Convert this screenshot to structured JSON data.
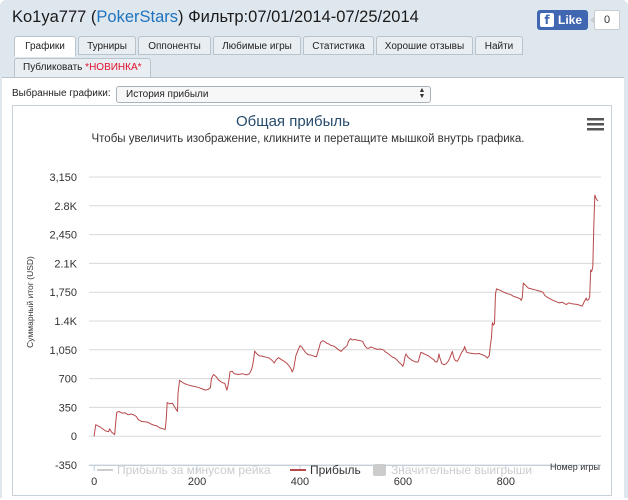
{
  "header": {
    "player": "Ko1ya777",
    "site_open": " (",
    "site": "PokerStars",
    "site_close": ")",
    "filter": " Фильтр:07/01/2014-07/25/2014"
  },
  "facebook": {
    "like_label": "Like",
    "count": "0"
  },
  "tabs": [
    {
      "label": "Графики",
      "active": true
    },
    {
      "label": "Турниры"
    },
    {
      "label": "Оппоненты"
    },
    {
      "label": "Любимые игры"
    },
    {
      "label": "Статистика"
    },
    {
      "label": "Хорошие отзывы"
    },
    {
      "label": "Найти"
    }
  ],
  "publish_tab": {
    "label": "Публиковать ",
    "badge": "*НОВИНКА*"
  },
  "graph_selector": {
    "label": "Выбранные графики:",
    "value": "История прибыли"
  },
  "chart_data": {
    "type": "line",
    "title": "Общая прибыль",
    "subtitle": "Чтобы увеличить изображение, кликните и перетащите мышкой внутрь графика.",
    "ylabel": "Суммарный итог (USD)",
    "xlabel": "Номер игры",
    "ylim": [
      -350,
      3150
    ],
    "xlim": [
      -10,
      985
    ],
    "y_ticks": [
      -350,
      0,
      350,
      700,
      1050,
      1400,
      1750,
      2100,
      2450,
      2800,
      3150
    ],
    "y_tick_labels": [
      "-350",
      "0",
      "350",
      "700",
      "1,050",
      "1.4K",
      "1,750",
      "2.1K",
      "2,450",
      "2.8K",
      "3,150"
    ],
    "x_ticks": [
      0,
      200,
      400,
      600,
      800
    ],
    "x_tick_labels": [
      "0",
      "200",
      "400",
      "600",
      "800"
    ],
    "grid": "horizontal",
    "legend_position": "bottom",
    "series": [
      {
        "name": "Прибыль за минусом рейка",
        "color": "#cccccc",
        "visible": false,
        "values": []
      },
      {
        "name": "Прибыль",
        "color": "#b8494b",
        "visible": true,
        "points": [
          [
            0,
            0
          ],
          [
            3,
            140
          ],
          [
            12,
            110
          ],
          [
            22,
            65
          ],
          [
            28,
            55
          ],
          [
            30,
            90
          ],
          [
            34,
            50
          ],
          [
            40,
            20
          ],
          [
            42,
            180
          ],
          [
            44,
            290
          ],
          [
            48,
            300
          ],
          [
            55,
            280
          ],
          [
            60,
            285
          ],
          [
            66,
            260
          ],
          [
            72,
            270
          ],
          [
            78,
            255
          ],
          [
            82,
            240
          ],
          [
            86,
            200
          ],
          [
            92,
            180
          ],
          [
            98,
            175
          ],
          [
            104,
            170
          ],
          [
            110,
            150
          ],
          [
            116,
            135
          ],
          [
            122,
            125
          ],
          [
            128,
            100
          ],
          [
            134,
            90
          ],
          [
            138,
            80
          ],
          [
            140,
            200
          ],
          [
            142,
            410
          ],
          [
            146,
            395
          ],
          [
            152,
            400
          ],
          [
            156,
            360
          ],
          [
            162,
            300
          ],
          [
            163,
            520
          ],
          [
            166,
            680
          ],
          [
            168,
            670
          ],
          [
            175,
            640
          ],
          [
            182,
            625
          ],
          [
            190,
            610
          ],
          [
            198,
            600
          ],
          [
            204,
            590
          ],
          [
            210,
            575
          ],
          [
            216,
            560
          ],
          [
            222,
            570
          ],
          [
            226,
            590
          ],
          [
            228,
            705
          ],
          [
            232,
            750
          ],
          [
            236,
            730
          ],
          [
            242,
            680
          ],
          [
            248,
            655
          ],
          [
            254,
            640
          ],
          [
            258,
            560
          ],
          [
            260,
            610
          ],
          [
            262,
            690
          ],
          [
            264,
            780
          ],
          [
            268,
            790
          ],
          [
            272,
            760
          ],
          [
            280,
            750
          ],
          [
            288,
            760
          ],
          [
            296,
            745
          ],
          [
            302,
            760
          ],
          [
            306,
            810
          ],
          [
            308,
            860
          ],
          [
            310,
            940
          ],
          [
            312,
            1035
          ],
          [
            315,
            1010
          ],
          [
            320,
            980
          ],
          [
            328,
            970
          ],
          [
            334,
            960
          ],
          [
            340,
            950
          ],
          [
            346,
            920
          ],
          [
            350,
            890
          ],
          [
            354,
            930
          ],
          [
            358,
            955
          ],
          [
            362,
            940
          ],
          [
            368,
            915
          ],
          [
            374,
            890
          ],
          [
            378,
            860
          ],
          [
            382,
            825
          ],
          [
            385,
            780
          ],
          [
            388,
            830
          ],
          [
            392,
            980
          ],
          [
            396,
            1040
          ],
          [
            400,
            1100
          ],
          [
            404,
            1080
          ],
          [
            408,
            1040
          ],
          [
            412,
            1010
          ],
          [
            416,
            990
          ],
          [
            422,
            985
          ],
          [
            428,
            970
          ],
          [
            432,
            965
          ],
          [
            436,
            1050
          ],
          [
            440,
            1140
          ],
          [
            444,
            1160
          ],
          [
            448,
            1150
          ],
          [
            452,
            1130
          ],
          [
            456,
            1120
          ],
          [
            460,
            1105
          ],
          [
            466,
            1095
          ],
          [
            470,
            1075
          ],
          [
            476,
            1045
          ],
          [
            480,
            1030
          ],
          [
            484,
            1060
          ],
          [
            488,
            1080
          ],
          [
            492,
            1105
          ],
          [
            494,
            1150
          ],
          [
            498,
            1185
          ],
          [
            502,
            1170
          ],
          [
            508,
            1175
          ],
          [
            512,
            1165
          ],
          [
            518,
            1160
          ],
          [
            522,
            1150
          ],
          [
            526,
            1100
          ],
          [
            530,
            1070
          ],
          [
            534,
            1070
          ],
          [
            538,
            1085
          ],
          [
            544,
            1070
          ],
          [
            550,
            1055
          ],
          [
            556,
            1060
          ],
          [
            562,
            1050
          ],
          [
            566,
            1025
          ],
          [
            570,
            1010
          ],
          [
            576,
            980
          ],
          [
            580,
            960
          ],
          [
            584,
            950
          ],
          [
            588,
            930
          ],
          [
            592,
            900
          ],
          [
            596,
            880
          ],
          [
            600,
            850
          ],
          [
            602,
            890
          ],
          [
            604,
            960
          ],
          [
            606,
            1000
          ],
          [
            610,
            960
          ],
          [
            614,
            940
          ],
          [
            618,
            920
          ],
          [
            622,
            910
          ],
          [
            626,
            900
          ],
          [
            630,
            905
          ],
          [
            632,
            960
          ],
          [
            635,
            1020
          ],
          [
            640,
            1005
          ],
          [
            645,
            990
          ],
          [
            650,
            975
          ],
          [
            655,
            950
          ],
          [
            660,
            930
          ],
          [
            662,
            910
          ],
          [
            666,
            900
          ],
          [
            668,
            930
          ],
          [
            670,
            1000
          ],
          [
            672,
            950
          ],
          [
            676,
            880
          ],
          [
            680,
            870
          ],
          [
            684,
            880
          ],
          [
            688,
            910
          ],
          [
            692,
            960
          ],
          [
            694,
            1000
          ],
          [
            696,
            1030
          ],
          [
            698,
            980
          ],
          [
            700,
            940
          ],
          [
            702,
            920
          ],
          [
            706,
            910
          ],
          [
            710,
            960
          ],
          [
            714,
            1020
          ],
          [
            718,
            1050
          ],
          [
            720,
            1090
          ],
          [
            724,
            1020
          ],
          [
            730,
            1010
          ],
          [
            736,
            1005
          ],
          [
            742,
            1000
          ],
          [
            748,
            1005
          ],
          [
            754,
            990
          ],
          [
            760,
            975
          ],
          [
            764,
            950
          ],
          [
            768,
            980
          ],
          [
            770,
            1110
          ],
          [
            772,
            1190
          ],
          [
            774,
            1380
          ],
          [
            776,
            1350
          ],
          [
            778,
            1370
          ],
          [
            780,
            1730
          ],
          [
            782,
            1790
          ],
          [
            786,
            1780
          ],
          [
            790,
            1770
          ],
          [
            796,
            1750
          ],
          [
            800,
            1740
          ],
          [
            804,
            1730
          ],
          [
            810,
            1720
          ],
          [
            815,
            1700
          ],
          [
            820,
            1690
          ],
          [
            824,
            1680
          ],
          [
            828,
            1670
          ],
          [
            830,
            1650
          ],
          [
            832,
            1685
          ],
          [
            834,
            1860
          ],
          [
            838,
            1835
          ],
          [
            844,
            1800
          ],
          [
            850,
            1790
          ],
          [
            856,
            1780
          ],
          [
            862,
            1770
          ],
          [
            868,
            1760
          ],
          [
            872,
            1750
          ],
          [
            876,
            1710
          ],
          [
            880,
            1690
          ],
          [
            886,
            1670
          ],
          [
            892,
            1650
          ],
          [
            898,
            1635
          ],
          [
            904,
            1620
          ],
          [
            910,
            1630
          ],
          [
            914,
            1610
          ],
          [
            918,
            1600
          ],
          [
            922,
            1620
          ],
          [
            928,
            1610
          ],
          [
            934,
            1605
          ],
          [
            940,
            1600
          ],
          [
            944,
            1590
          ],
          [
            948,
            1580
          ],
          [
            950,
            1600
          ],
          [
            952,
            1630
          ],
          [
            954,
            1650
          ],
          [
            956,
            1680
          ],
          [
            958,
            1650
          ],
          [
            961,
            1660
          ],
          [
            963,
            1700
          ],
          [
            965,
            2020
          ],
          [
            967,
            2000
          ],
          [
            969,
            2060
          ],
          [
            971,
            2550
          ],
          [
            973,
            2930
          ],
          [
            976,
            2880
          ],
          [
            979,
            2860
          ]
        ]
      },
      {
        "name": "Значительные выигрыши",
        "color": "#cccccc",
        "visible": false,
        "values": []
      }
    ]
  },
  "icons": {
    "menu": "hamburger-menu-icon",
    "facebook": "facebook-f-icon"
  }
}
